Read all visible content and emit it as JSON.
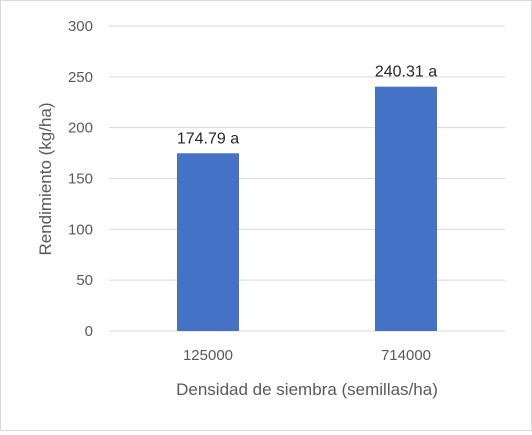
{
  "chart_data": {
    "type": "bar",
    "categories": [
      "125000",
      "714000"
    ],
    "values": [
      174.79,
      240.31
    ],
    "data_labels": [
      "174.79 a",
      "240.31 a"
    ],
    "xlabel": "Densidad de siembra (semillas/ha)",
    "ylabel": "Rendimiento (kg/ha)",
    "ylim": [
      0,
      300
    ],
    "yticks": [
      0,
      50,
      100,
      150,
      200,
      250,
      300
    ],
    "grid": true,
    "legend": "none",
    "bar_color": "#4472C4",
    "grid_color": "#d9d9d9"
  }
}
